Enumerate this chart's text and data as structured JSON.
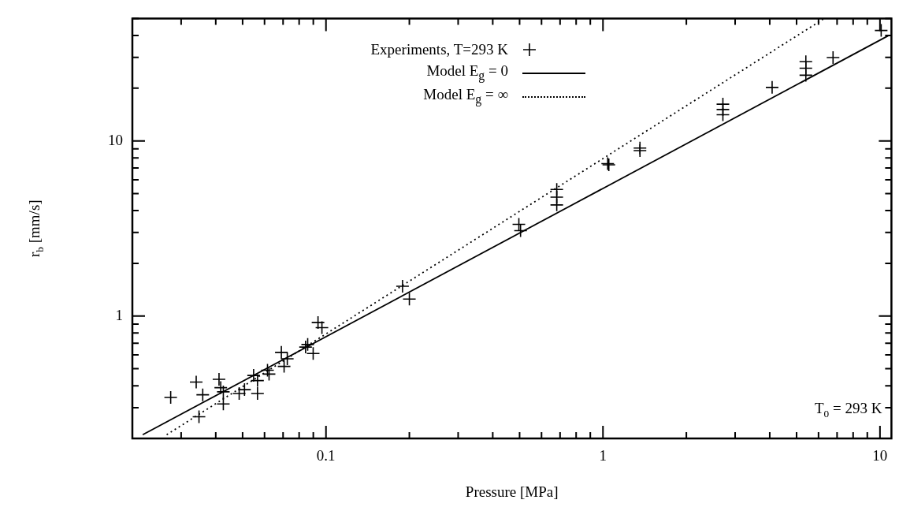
{
  "chart_data": {
    "type": "scatter",
    "xlabel": "Pressure [MPa]",
    "ylabel": "r$_{b}$ [mm/s]",
    "log": "xy",
    "grid": false,
    "legend": "top",
    "xlim": [
      0.02,
      11
    ],
    "ylim": [
      0.2,
      50
    ],
    "xticks": [
      {
        "value": 0.02,
        "label": null
      },
      {
        "value": 0.03,
        "label": null
      },
      {
        "value": 0.04,
        "label": null
      },
      {
        "value": 0.05,
        "label": null
      },
      {
        "value": 0.06,
        "label": null
      },
      {
        "value": 0.07,
        "label": null
      },
      {
        "value": 0.08,
        "label": null
      },
      {
        "value": 0.09,
        "label": null
      },
      0.1,
      {
        "value": 0.2,
        "label": null
      },
      {
        "value": 0.3,
        "label": null
      },
      {
        "value": 0.4,
        "label": null
      },
      {
        "value": 0.5,
        "label": null
      },
      {
        "value": 0.6,
        "label": null
      },
      {
        "value": 0.7,
        "label": null
      },
      {
        "value": 0.8,
        "label": null
      },
      {
        "value": 0.9,
        "label": null
      },
      1,
      {
        "value": 2,
        "label": null
      },
      {
        "value": 3,
        "label": null
      },
      {
        "value": 4,
        "label": null
      },
      {
        "value": 5,
        "label": null
      },
      {
        "value": 6,
        "label": null
      },
      {
        "value": 7,
        "label": null
      },
      {
        "value": 8,
        "label": null
      },
      {
        "value": 9,
        "label": null
      },
      10
    ],
    "yticks": [
      {
        "value": 0.2,
        "label": null
      },
      {
        "value": 0.3,
        "label": null
      },
      {
        "value": 0.4,
        "label": null
      },
      {
        "value": 0.5,
        "label": null
      },
      {
        "value": 0.6,
        "label": null
      },
      {
        "value": 0.7,
        "label": null
      },
      {
        "value": 0.8,
        "label": null
      },
      {
        "value": 0.9,
        "label": null
      },
      1,
      {
        "value": 2,
        "label": null
      },
      {
        "value": 3,
        "label": null
      },
      {
        "value": 4,
        "label": null
      },
      {
        "value": 5,
        "label": null
      },
      {
        "value": 6,
        "label": null
      },
      {
        "value": 7,
        "label": null
      },
      {
        "value": 8,
        "label": null
      },
      {
        "value": 9,
        "label": null
      },
      10,
      {
        "value": 20,
        "label": null
      },
      {
        "value": 30,
        "label": null
      },
      {
        "value": 40,
        "label": null
      },
      {
        "value": 50,
        "label": null
      }
    ],
    "annotations": [
      "T$_{0}$ = 293 K"
    ],
    "series": [
      {
        "name": "Experiments, T=293 K",
        "color": "#000000",
        "marker": "cross",
        "x": [
          0.0275,
          0.034,
          0.0359,
          0.0348,
          0.0411,
          0.0417,
          0.0426,
          0.0426,
          0.0486,
          0.0508,
          0.0548,
          0.0566,
          0.0566,
          0.0615,
          0.0623,
          0.069,
          0.0706,
          0.0725,
          0.0844,
          0.0859,
          0.0899,
          0.0936,
          0.0967,
          0.189,
          0.2,
          0.497,
          0.504,
          0.681,
          0.681,
          0.681,
          1.04,
          1.05,
          1.36,
          1.36,
          2.71,
          2.71,
          2.71,
          4.08,
          5.4,
          5.4,
          5.4,
          6.77,
          10.1
        ],
        "values": [
          0.343,
          0.42,
          0.355,
          0.266,
          0.435,
          0.39,
          0.369,
          0.315,
          0.361,
          0.38,
          0.458,
          0.428,
          0.361,
          0.49,
          0.466,
          0.62,
          0.516,
          0.57,
          0.665,
          0.688,
          0.611,
          0.919,
          0.858,
          1.48,
          1.25,
          3.34,
          3.07,
          5.28,
          4.77,
          4.31,
          7.42,
          7.3,
          9.1,
          8.8,
          16.2,
          15.1,
          14.1,
          20.2,
          28.3,
          26.0,
          23.7,
          29.9,
          42.7
        ]
      },
      {
        "name": "Model E$_{g}$ = 0",
        "type": "line",
        "color": "#000000",
        "line_style": "solid",
        "x": [
          0.0218,
          10.7
        ],
        "values": [
          0.21,
          39.8
        ]
      },
      {
        "name": "Model E$_{g}$ = ∞",
        "type": "line",
        "color": "#000000",
        "line_style": "dotted",
        "x": [
          0.0266,
          6.27
        ],
        "values": [
          0.21,
          49.8
        ]
      }
    ]
  }
}
